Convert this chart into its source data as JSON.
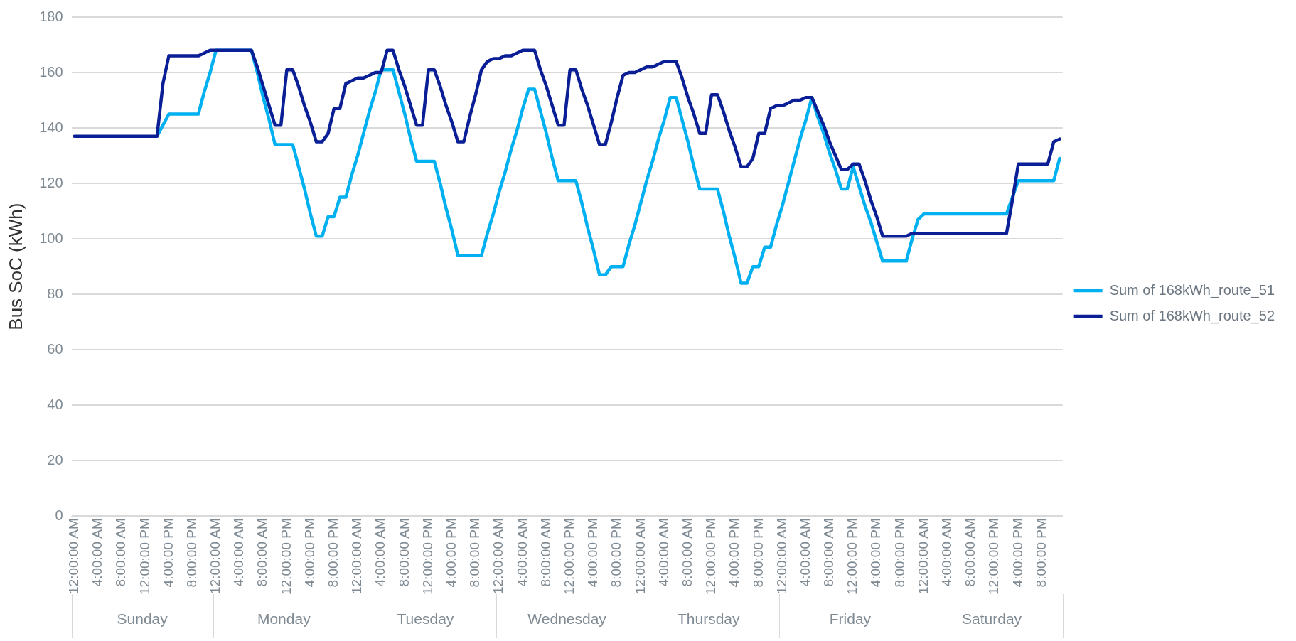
{
  "chart_data": {
    "type": "line",
    "ylabel": "Bus SoC (kWh)",
    "categories": [
      "12:00:00 AM",
      null,
      null,
      null,
      "4:00:00 AM",
      null,
      null,
      null,
      "8:00:00 AM",
      null,
      null,
      null,
      "12:00:00 PM",
      null,
      null,
      null,
      "4:00:00 PM",
      null,
      null,
      null,
      "8:00:00 PM",
      null,
      null,
      null,
      "12:00:00 AM",
      null,
      null,
      null,
      "4:00:00 AM",
      null,
      null,
      null,
      "8:00:00 AM",
      null,
      null,
      null,
      "12:00:00 PM",
      null,
      null,
      null,
      "4:00:00 PM",
      null,
      null,
      null,
      "8:00:00 PM",
      null,
      null,
      null,
      "12:00:00 AM",
      null,
      null,
      null,
      "4:00:00 AM",
      null,
      null,
      null,
      "8:00:00 AM",
      null,
      null,
      null,
      "12:00:00 PM",
      null,
      null,
      null,
      "4:00:00 PM",
      null,
      null,
      null,
      "8:00:00 PM",
      null,
      null,
      null,
      "12:00:00 AM",
      null,
      null,
      null,
      "4:00:00 AM",
      null,
      null,
      null,
      "8:00:00 AM",
      null,
      null,
      null,
      "12:00:00 PM",
      null,
      null,
      null,
      "4:00:00 PM",
      null,
      null,
      null,
      "8:00:00 PM",
      null,
      null,
      null,
      "12:00:00 AM",
      null,
      null,
      null,
      "4:00:00 AM",
      null,
      null,
      null,
      "8:00:00 AM",
      null,
      null,
      null,
      "12:00:00 PM",
      null,
      null,
      null,
      "4:00:00 PM",
      null,
      null,
      null,
      "8:00:00 PM",
      null,
      null,
      null,
      "12:00:00 AM",
      null,
      null,
      null,
      "4:00:00 AM",
      null,
      null,
      null,
      "8:00:00 AM",
      null,
      null,
      null,
      "12:00:00 PM",
      null,
      null,
      null,
      "4:00:00 PM",
      null,
      null,
      null,
      "8:00:00 PM",
      null,
      null,
      null,
      "12:00:00 AM",
      null,
      null,
      null,
      "4:00:00 AM",
      null,
      null,
      null,
      "8:00:00 AM",
      null,
      null,
      null,
      "12:00:00 PM",
      null,
      null,
      null,
      "4:00:00 PM",
      null,
      null,
      null,
      "8:00:00 PM",
      null,
      null,
      null
    ],
    "ylim": [
      0,
      180
    ],
    "yticks": [
      0,
      20,
      40,
      60,
      80,
      100,
      120,
      140,
      160,
      180
    ],
    "grid": "y",
    "legend": "right",
    "marker": "none",
    "line_style": "solid",
    "annotations": [
      "Sunday",
      "Monday",
      "Tuesday",
      "Wednesday",
      "Thursday",
      "Friday",
      "Saturday"
    ],
    "series": [
      {
        "name": "Sum of 168kWh_route_51",
        "color": "#00b0f0",
        "values": [
          null,
          null,
          null,
          null,
          null,
          null,
          null,
          null,
          null,
          null,
          null,
          null,
          null,
          null,
          137,
          141,
          145,
          145,
          145,
          145,
          145,
          145,
          153,
          160,
          168,
          168,
          168,
          168,
          168,
          168,
          168,
          160,
          151,
          143,
          134,
          134,
          134,
          134,
          126,
          118,
          109,
          101,
          101,
          108,
          108,
          115,
          115,
          123,
          130,
          138,
          146,
          153,
          161,
          161,
          161,
          153,
          145,
          136,
          128,
          128,
          128,
          128,
          120,
          111,
          103,
          94,
          94,
          94,
          94,
          94,
          102,
          109,
          117,
          124,
          132,
          139,
          147,
          154,
          154,
          146,
          138,
          129,
          121,
          121,
          121,
          121,
          113,
          104,
          96,
          87,
          87,
          90,
          90,
          90,
          98,
          105,
          113,
          121,
          128,
          136,
          143,
          151,
          151,
          143,
          135,
          126,
          118,
          118,
          118,
          118,
          110,
          101,
          93,
          84,
          84,
          90,
          90,
          97,
          97,
          105,
          112,
          120,
          128,
          136,
          143,
          151,
          144,
          138,
          131,
          125,
          118,
          118,
          126,
          119,
          112,
          106,
          99,
          92,
          92,
          92,
          92,
          92,
          100,
          107,
          109,
          109,
          109,
          109,
          109,
          109,
          109,
          109,
          109,
          109,
          109,
          109,
          109,
          109,
          109,
          115,
          121,
          121,
          121,
          121,
          121,
          121,
          121,
          129
        ]
      },
      {
        "name": "Sum of 168kWh_route_52",
        "color": "#0a1f96",
        "values": [
          137,
          137,
          137,
          137,
          137,
          137,
          137,
          137,
          137,
          137,
          137,
          137,
          137,
          137,
          137,
          156,
          166,
          166,
          166,
          166,
          166,
          166,
          167,
          168,
          168,
          168,
          168,
          168,
          168,
          168,
          168,
          162,
          155,
          148,
          141,
          141,
          161,
          161,
          155,
          148,
          142,
          135,
          135,
          138,
          147,
          147,
          156,
          157,
          158,
          158,
          159,
          160,
          160,
          168,
          168,
          161,
          155,
          148,
          141,
          141,
          161,
          161,
          155,
          148,
          142,
          135,
          135,
          144,
          152,
          161,
          164,
          165,
          165,
          166,
          166,
          167,
          168,
          168,
          168,
          161,
          155,
          148,
          141,
          141,
          161,
          161,
          154,
          148,
          141,
          134,
          134,
          142,
          151,
          159,
          160,
          160,
          161,
          162,
          162,
          163,
          164,
          164,
          164,
          158,
          151,
          145,
          138,
          138,
          152,
          152,
          146,
          139,
          133,
          126,
          126,
          129,
          138,
          138,
          147,
          148,
          148,
          149,
          150,
          150,
          151,
          151,
          146,
          141,
          135,
          130,
          125,
          125,
          127,
          127,
          121,
          114,
          108,
          101,
          101,
          101,
          101,
          101,
          102,
          102,
          102,
          102,
          102,
          102,
          102,
          102,
          102,
          102,
          102,
          102,
          102,
          102,
          102,
          102,
          102,
          114,
          127,
          127,
          127,
          127,
          127,
          127,
          135,
          136
        ]
      }
    ]
  }
}
